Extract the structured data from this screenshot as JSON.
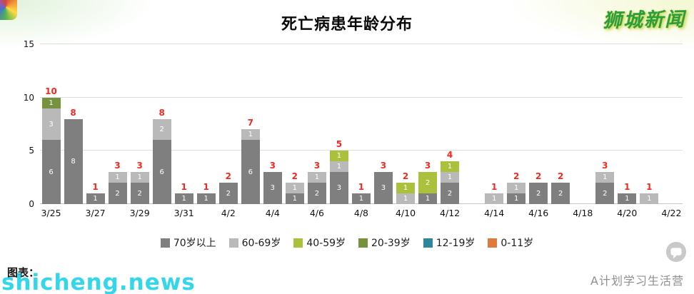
{
  "branding": {
    "top_right": "狮城新闻",
    "bottom_left_caption": "图表：",
    "bottom_left_watermark": "shicheng.news",
    "bottom_right_caption": "A计划学习生活营"
  },
  "chart_data": {
    "type": "bar",
    "stacked": true,
    "title": "死亡病患年龄分布",
    "x": [
      "3/25",
      "3/26",
      "3/27",
      "3/28",
      "3/29",
      "3/30",
      "3/31",
      "4/1",
      "4/2",
      "4/3",
      "4/4",
      "4/5",
      "4/6",
      "4/7",
      "4/8",
      "4/9",
      "4/10",
      "4/11",
      "4/12",
      "4/13",
      "4/14",
      "4/15",
      "4/16",
      "4/17",
      "4/18",
      "4/19",
      "4/20",
      "4/21",
      "4/22"
    ],
    "xtick_every": 2,
    "series": [
      {
        "name": "70岁以上",
        "color": "#7f7f7f",
        "values": [
          6,
          8,
          1,
          2,
          2,
          6,
          1,
          1,
          2,
          6,
          3,
          1,
          2,
          3,
          1,
          3,
          0,
          1,
          2,
          0,
          0,
          1,
          2,
          2,
          0,
          2,
          1,
          0,
          0
        ]
      },
      {
        "name": "60-69岁",
        "color": "#b9b9b9",
        "values": [
          3,
          0,
          0,
          1,
          1,
          2,
          0,
          0,
          0,
          1,
          0,
          1,
          1,
          1,
          0,
          0,
          1,
          0,
          1,
          0,
          1,
          1,
          0,
          0,
          0,
          1,
          0,
          1,
          0
        ]
      },
      {
        "name": "40-59岁",
        "color": "#abc13c",
        "values": [
          0,
          0,
          0,
          0,
          0,
          0,
          0,
          0,
          0,
          0,
          0,
          0,
          0,
          1,
          0,
          0,
          1,
          2,
          1,
          0,
          0,
          0,
          0,
          0,
          0,
          0,
          0,
          0,
          0
        ]
      },
      {
        "name": "20-39岁",
        "color": "#76923c",
        "values": [
          1,
          0,
          0,
          0,
          0,
          0,
          0,
          0,
          0,
          0,
          0,
          0,
          0,
          0,
          0,
          0,
          0,
          0,
          0,
          0,
          0,
          0,
          0,
          0,
          0,
          0,
          0,
          0,
          0
        ]
      },
      {
        "name": "12-19岁",
        "color": "#2f859b",
        "values": [
          0,
          0,
          0,
          0,
          0,
          0,
          0,
          0,
          0,
          0,
          0,
          0,
          0,
          0,
          0,
          0,
          0,
          0,
          0,
          0,
          0,
          0,
          0,
          0,
          0,
          0,
          0,
          0,
          0
        ]
      },
      {
        "name": "0-11岁",
        "color": "#e0793c",
        "values": [
          0,
          0,
          0,
          0,
          0,
          0,
          0,
          0,
          0,
          0,
          0,
          0,
          0,
          0,
          0,
          0,
          0,
          0,
          0,
          0,
          0,
          0,
          0,
          0,
          0,
          0,
          0,
          0,
          0
        ]
      }
    ],
    "totals": [
      10,
      8,
      1,
      3,
      3,
      8,
      1,
      1,
      2,
      7,
      3,
      2,
      3,
      5,
      1,
      3,
      2,
      3,
      4,
      0,
      1,
      2,
      2,
      2,
      0,
      3,
      1,
      1,
      0
    ],
    "total_label_color": "#f3291f",
    "ylim": [
      0,
      15
    ],
    "yticks": [
      0,
      5,
      10,
      15
    ],
    "grid": true,
    "legend_position": "bottom"
  }
}
